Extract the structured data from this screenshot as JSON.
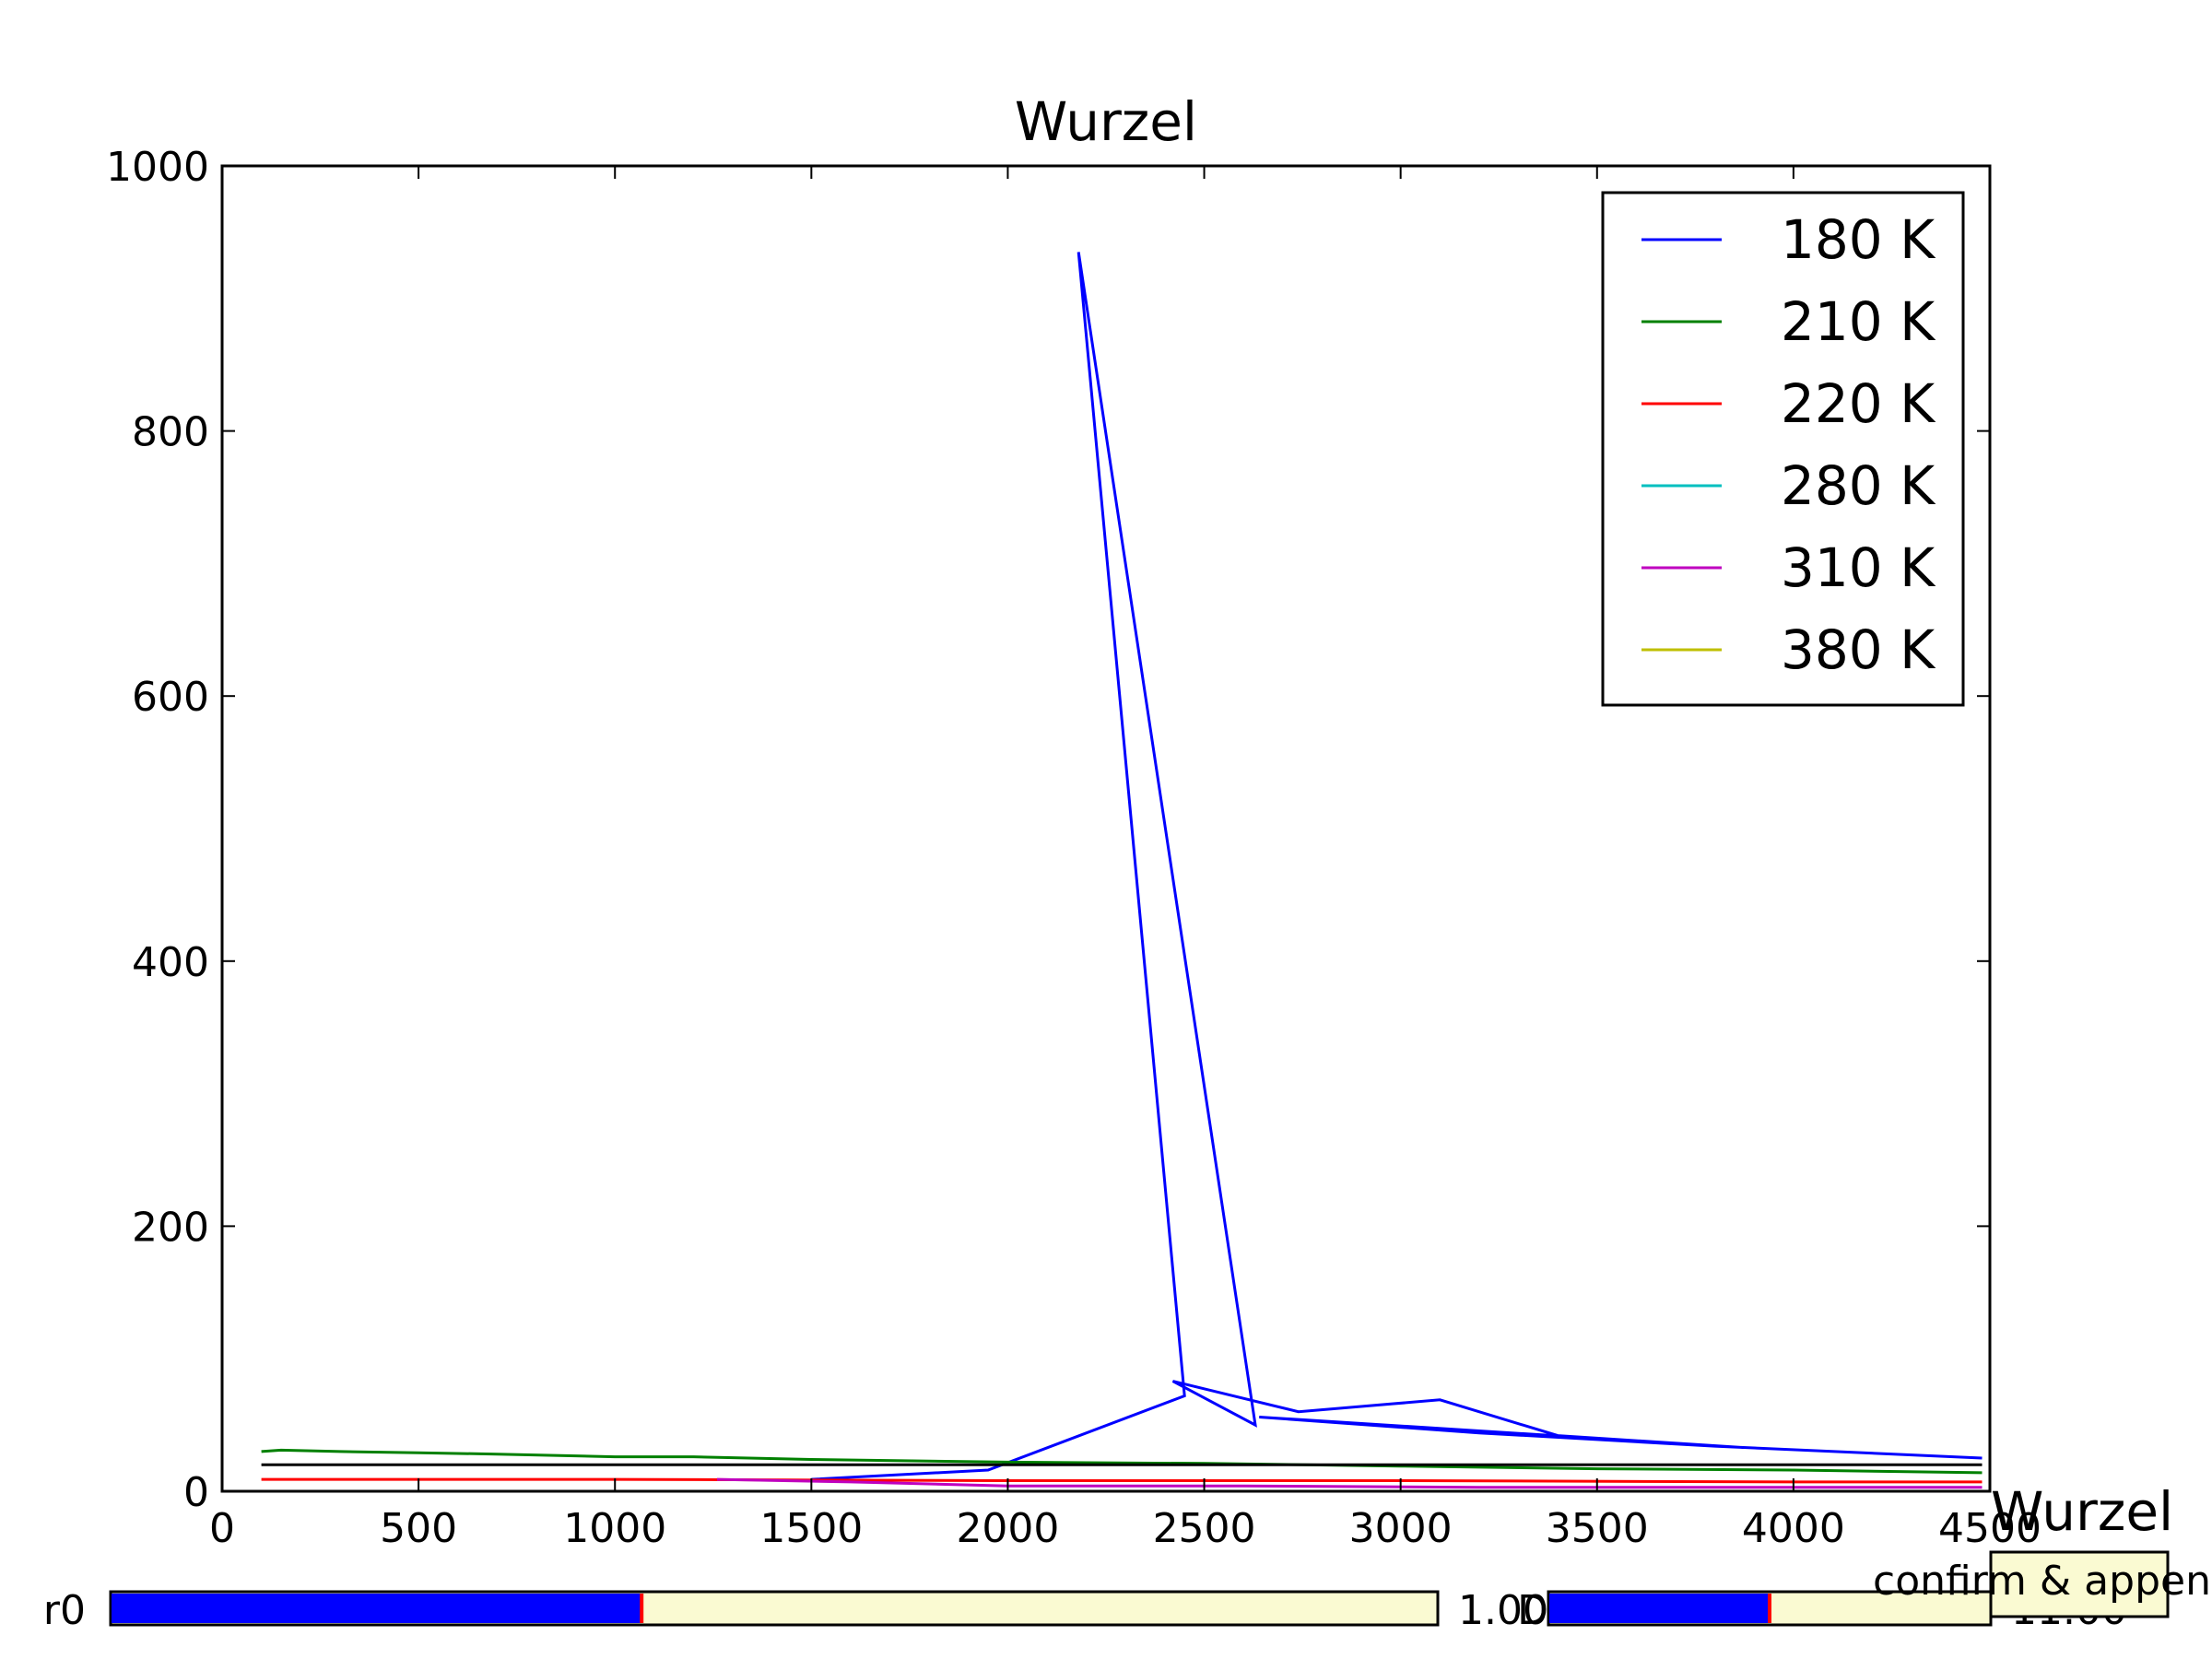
{
  "chart_data": {
    "type": "line",
    "title": "Wurzel",
    "xlabel": "",
    "ylabel": "",
    "xlim": [
      0,
      4500
    ],
    "ylim": [
      0,
      1000
    ],
    "xticks": [
      "0",
      "500",
      "1000",
      "1500",
      "2000",
      "2500",
      "3000",
      "3500",
      "4000",
      "4500"
    ],
    "yticks": [
      "0",
      "200",
      "400",
      "600",
      "800",
      "1000"
    ],
    "legend_position": "top-right",
    "grid": false,
    "series": [
      {
        "name": "180 K",
        "color": "#0000ff",
        "points": [
          [
            1500,
            9
          ],
          [
            1950,
            16
          ],
          [
            2450,
            72
          ],
          [
            2180,
            935
          ],
          [
            2630,
            50
          ],
          [
            2420,
            83
          ],
          [
            2740,
            60
          ],
          [
            3100,
            69
          ],
          [
            3400,
            42
          ],
          [
            3870,
            33
          ],
          [
            2640,
            56
          ],
          [
            3200,
            44
          ],
          [
            3800,
            34
          ],
          [
            4480,
            25
          ]
        ]
      },
      {
        "name": "210 K",
        "color": "#008000",
        "points": [
          [
            100,
            30
          ],
          [
            150,
            31
          ],
          [
            300,
            30
          ],
          [
            500,
            29
          ],
          [
            700,
            28
          ],
          [
            1000,
            26
          ],
          [
            1200,
            26
          ],
          [
            1500,
            24
          ],
          [
            2000,
            22
          ],
          [
            2500,
            21
          ],
          [
            3000,
            19
          ],
          [
            3500,
            17
          ],
          [
            4000,
            16
          ],
          [
            4480,
            14
          ]
        ]
      },
      {
        "name": "220 K",
        "color": "#ff0000",
        "points": [
          [
            100,
            9
          ],
          [
            1000,
            9
          ],
          [
            2000,
            8
          ],
          [
            3000,
            8
          ],
          [
            4000,
            7
          ],
          [
            4480,
            7
          ]
        ]
      },
      {
        "name": "280 K",
        "color": "#00bfbf",
        "points": []
      },
      {
        "name": "310 K",
        "color": "#bf00bf",
        "points": [
          [
            1260,
            9
          ],
          [
            1600,
            7
          ],
          [
            2000,
            4
          ],
          [
            2600,
            4
          ],
          [
            3200,
            3
          ],
          [
            4000,
            3
          ],
          [
            4480,
            3
          ]
        ]
      },
      {
        "name": "380 K",
        "color": "#bfbf00",
        "points": []
      },
      {
        "color": "#000000",
        "points": [
          [
            100,
            20
          ],
          [
            4480,
            20
          ]
        ]
      }
    ]
  },
  "sliders": [
    {
      "label": "r0",
      "value_text": "1.00",
      "fraction": 0.4
    },
    {
      "label": "D",
      "value_text": "11.00",
      "fraction": 0.5
    }
  ],
  "button": {
    "title": "Wurzel",
    "label": "confirm & append"
  }
}
